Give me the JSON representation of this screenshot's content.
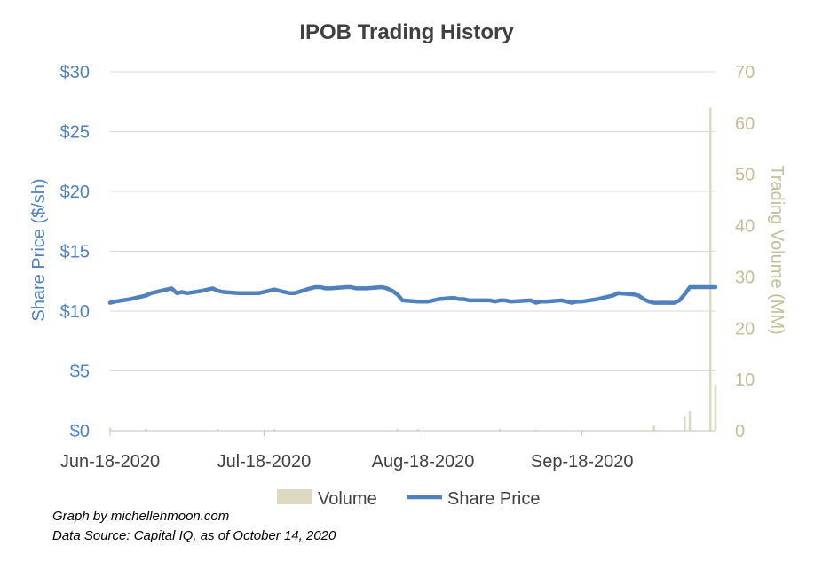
{
  "chart_data": {
    "type": "line",
    "title": "IPOB Trading History",
    "ylabel_left": "Share Price ($/sh)",
    "ylabel_right": "Trading Volume (MM)",
    "y_left_ticks": [
      "$0",
      "$5",
      "$10",
      "$15",
      "$20",
      "$25",
      "$30"
    ],
    "y_left_lim": [
      0,
      30
    ],
    "y_right_ticks": [
      "0",
      "10",
      "20",
      "30",
      "40",
      "50",
      "60",
      "70"
    ],
    "y_right_lim": [
      0,
      70
    ],
    "x_ticks": [
      "Jun-18-2020",
      "Jul-18-2020",
      "Aug-18-2020",
      "Sep-18-2020"
    ],
    "x_tick_dates": [
      "2020-06-18",
      "2020-07-18",
      "2020-08-18",
      "2020-09-18"
    ],
    "x_range": [
      "2020-06-18",
      "2020-10-14"
    ],
    "grid": "horizontal",
    "legend_position": "bottom",
    "colors": {
      "price": "#4f81bd",
      "volume": "#ddd9c3"
    },
    "series": [
      {
        "name": "Share Price",
        "axis": "left",
        "type": "line",
        "points": [
          [
            "2020-06-18",
            10.7
          ],
          [
            "2020-06-19",
            10.8
          ],
          [
            "2020-06-22",
            11.0
          ],
          [
            "2020-06-23",
            11.1
          ],
          [
            "2020-06-24",
            11.2
          ],
          [
            "2020-06-25",
            11.3
          ],
          [
            "2020-06-26",
            11.5
          ],
          [
            "2020-06-29",
            11.8
          ],
          [
            "2020-06-30",
            11.9
          ],
          [
            "2020-07-01",
            11.5
          ],
          [
            "2020-07-02",
            11.6
          ],
          [
            "2020-07-03",
            11.5
          ],
          [
            "2020-07-06",
            11.7
          ],
          [
            "2020-07-07",
            11.8
          ],
          [
            "2020-07-08",
            11.9
          ],
          [
            "2020-07-09",
            11.7
          ],
          [
            "2020-07-10",
            11.6
          ],
          [
            "2020-07-13",
            11.5
          ],
          [
            "2020-07-14",
            11.5
          ],
          [
            "2020-07-15",
            11.5
          ],
          [
            "2020-07-16",
            11.5
          ],
          [
            "2020-07-17",
            11.5
          ],
          [
            "2020-07-20",
            11.8
          ],
          [
            "2020-07-21",
            11.7
          ],
          [
            "2020-07-22",
            11.6
          ],
          [
            "2020-07-23",
            11.5
          ],
          [
            "2020-07-24",
            11.5
          ],
          [
            "2020-07-27",
            11.9
          ],
          [
            "2020-07-28",
            12.0
          ],
          [
            "2020-07-29",
            12.0
          ],
          [
            "2020-07-30",
            11.9
          ],
          [
            "2020-07-31",
            11.9
          ],
          [
            "2020-08-03",
            12.0
          ],
          [
            "2020-08-04",
            12.0
          ],
          [
            "2020-08-05",
            11.9
          ],
          [
            "2020-08-06",
            11.9
          ],
          [
            "2020-08-07",
            11.9
          ],
          [
            "2020-08-10",
            12.0
          ],
          [
            "2020-08-11",
            11.9
          ],
          [
            "2020-08-12",
            11.7
          ],
          [
            "2020-08-13",
            11.4
          ],
          [
            "2020-08-14",
            10.9
          ],
          [
            "2020-08-17",
            10.8
          ],
          [
            "2020-08-18",
            10.8
          ],
          [
            "2020-08-19",
            10.8
          ],
          [
            "2020-08-20",
            10.9
          ],
          [
            "2020-08-21",
            11.0
          ],
          [
            "2020-08-24",
            11.1
          ],
          [
            "2020-08-25",
            11.0
          ],
          [
            "2020-08-26",
            11.0
          ],
          [
            "2020-08-27",
            10.9
          ],
          [
            "2020-08-28",
            10.9
          ],
          [
            "2020-08-31",
            10.9
          ],
          [
            "2020-09-01",
            10.8
          ],
          [
            "2020-09-02",
            10.9
          ],
          [
            "2020-09-03",
            10.9
          ],
          [
            "2020-09-04",
            10.8
          ],
          [
            "2020-09-08",
            10.9
          ],
          [
            "2020-09-09",
            10.7
          ],
          [
            "2020-09-10",
            10.8
          ],
          [
            "2020-09-11",
            10.8
          ],
          [
            "2020-09-14",
            10.9
          ],
          [
            "2020-09-15",
            10.8
          ],
          [
            "2020-09-16",
            10.7
          ],
          [
            "2020-09-17",
            10.8
          ],
          [
            "2020-09-18",
            10.8
          ],
          [
            "2020-09-21",
            11.0
          ],
          [
            "2020-09-22",
            11.1
          ],
          [
            "2020-09-23",
            11.2
          ],
          [
            "2020-09-24",
            11.3
          ],
          [
            "2020-09-25",
            11.5
          ],
          [
            "2020-09-28",
            11.4
          ],
          [
            "2020-09-29",
            11.3
          ],
          [
            "2020-09-30",
            11.0
          ],
          [
            "2020-10-01",
            10.8
          ],
          [
            "2020-10-02",
            10.7
          ],
          [
            "2020-10-05",
            10.7
          ],
          [
            "2020-10-06",
            10.7
          ],
          [
            "2020-10-07",
            10.9
          ],
          [
            "2020-10-08",
            11.4
          ],
          [
            "2020-10-09",
            12.0
          ],
          [
            "2020-10-12",
            12.0
          ],
          [
            "2020-10-13",
            12.0
          ],
          [
            "2020-10-14",
            12.0
          ]
        ]
      },
      {
        "name": "Volume",
        "axis": "right",
        "type": "bar",
        "points": [
          [
            "2020-06-18",
            0.6
          ],
          [
            "2020-06-25",
            0.4
          ],
          [
            "2020-07-09",
            0.3
          ],
          [
            "2020-07-20",
            0.3
          ],
          [
            "2020-08-13",
            0.3
          ],
          [
            "2020-08-17",
            0.3
          ],
          [
            "2020-09-02",
            0.3
          ],
          [
            "2020-09-09",
            0.2
          ],
          [
            "2020-10-02",
            1.0
          ],
          [
            "2020-10-08",
            2.8
          ],
          [
            "2020-10-09",
            3.8
          ],
          [
            "2020-10-13",
            63.0
          ],
          [
            "2020-10-14",
            9.0
          ]
        ]
      }
    ]
  },
  "notes": {
    "line1": "Graph by michellehmoon.com",
    "line2": "Data Source: Capital IQ, as of October 14, 2020"
  }
}
